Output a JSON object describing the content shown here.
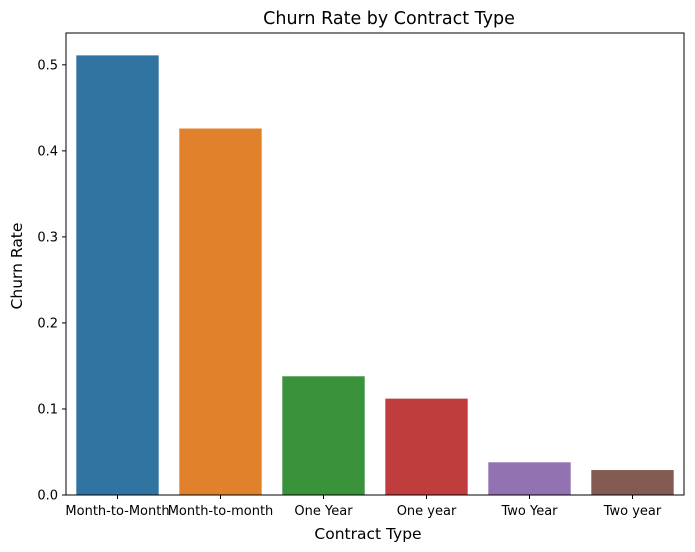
{
  "chart_data": {
    "type": "bar",
    "title": "Churn Rate by Contract Type",
    "xlabel": "Contract Type",
    "ylabel": "Churn Rate",
    "categories": [
      "Month-to-Month",
      "Month-to-month",
      "One Year",
      "One year",
      "Two Year",
      "Two year"
    ],
    "values": [
      0.511,
      0.426,
      0.138,
      0.112,
      0.038,
      0.029
    ],
    "colors": [
      "#3274a1",
      "#e1812c",
      "#3a923a",
      "#c03d3e",
      "#9372b2",
      "#845b53"
    ],
    "ylim": [
      0,
      0.537
    ],
    "yticks": [
      0.0,
      0.1,
      0.2,
      0.3,
      0.4,
      0.5
    ],
    "ytick_labels": [
      "0.0",
      "0.1",
      "0.2",
      "0.3",
      "0.4",
      "0.5"
    ],
    "grid": false,
    "legend": "none"
  }
}
